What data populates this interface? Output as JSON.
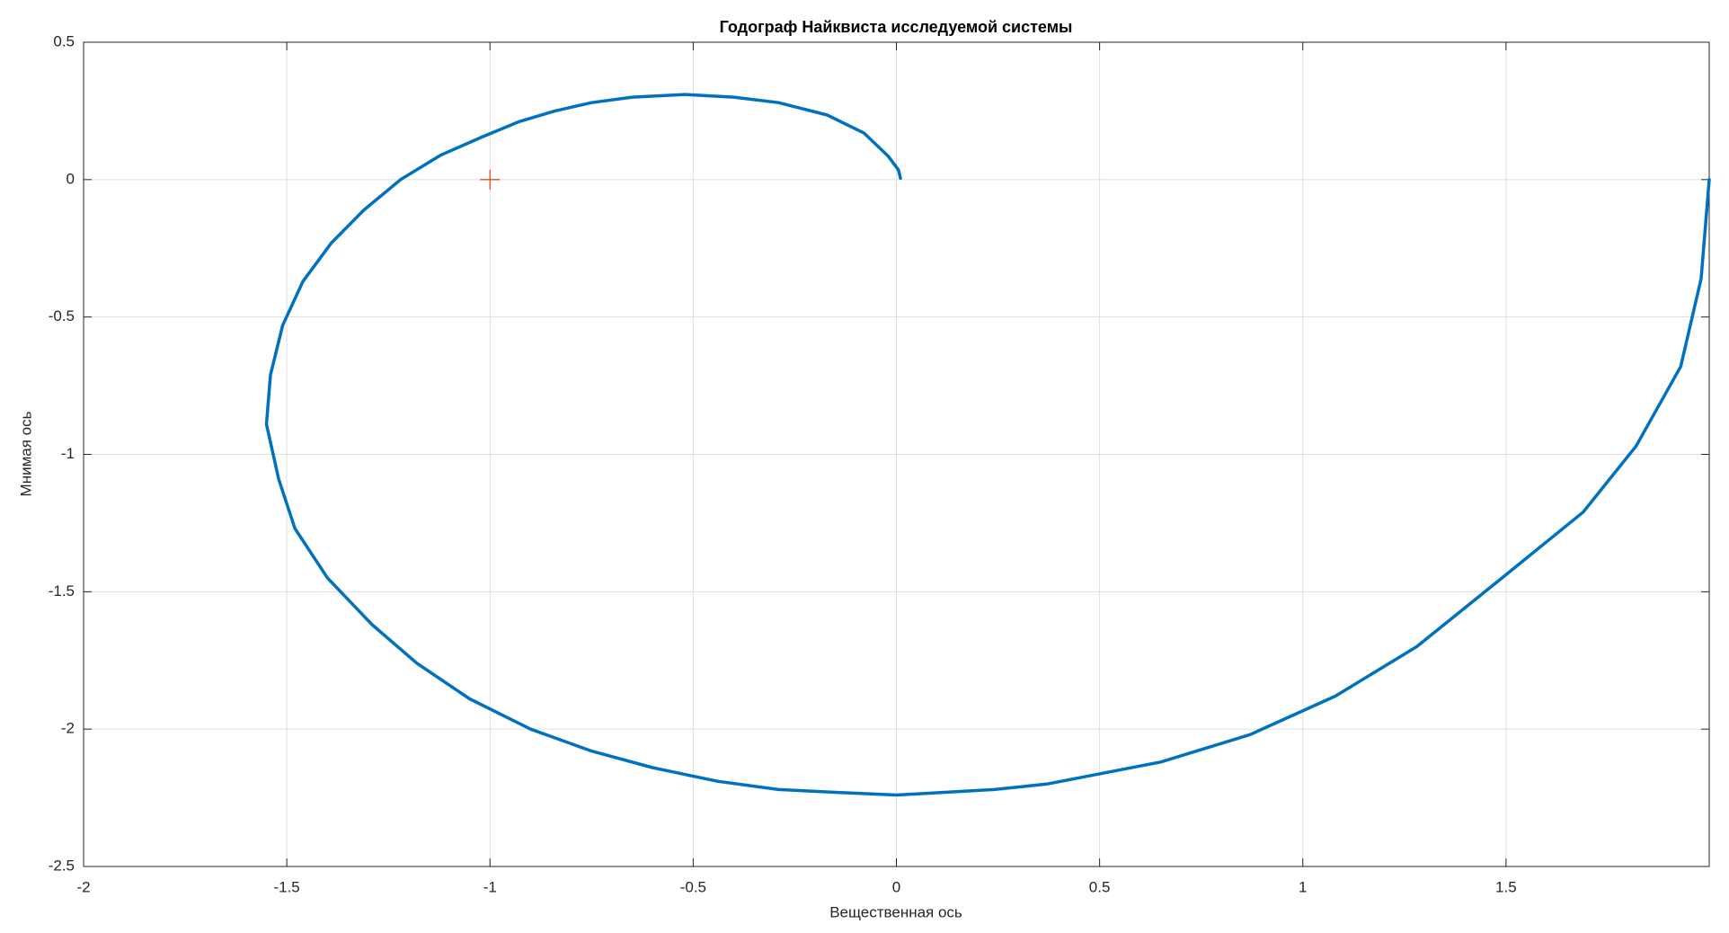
{
  "chart_data": {
    "type": "line",
    "title": "Годограф Найквиста исследуемой системы",
    "x_label": "Вещественная ось",
    "y_label": "Мнимая ось",
    "xlim": [
      -2,
      2
    ],
    "ylim": [
      -2.5,
      0.5
    ],
    "xticks": [
      -2,
      -1.5,
      -1,
      -0.5,
      0,
      0.5,
      1,
      1.5
    ],
    "yticks": [
      -2.5,
      -2,
      -1.5,
      -1,
      -0.5,
      0,
      0.5
    ],
    "grid": true,
    "series": [
      {
        "color": "#0072bd",
        "marker": "none",
        "x": [
          2.0,
          1.98,
          1.93,
          1.82,
          1.69,
          1.49,
          1.28,
          1.08,
          0.87,
          0.65,
          0.37,
          0.24,
          0.0,
          -0.15,
          -0.29,
          -0.44,
          -0.6,
          -0.75,
          -0.9,
          -1.05,
          -1.18,
          -1.29,
          -1.4,
          -1.48,
          -1.52,
          -1.55,
          -1.54,
          -1.51,
          -1.46,
          -1.39,
          -1.31,
          -1.22,
          -1.12,
          -1.02,
          -0.93,
          -0.84,
          -0.75,
          -0.65,
          -0.52,
          -0.4,
          -0.29,
          -0.17,
          -0.08,
          -0.02,
          0.005,
          0.01
        ],
        "values": [
          0.0,
          -0.36,
          -0.68,
          -0.97,
          -1.21,
          -1.45,
          -1.7,
          -1.88,
          -2.02,
          -2.12,
          -2.2,
          -2.22,
          -2.24,
          -2.23,
          -2.22,
          -2.19,
          -2.14,
          -2.08,
          -2.0,
          -1.89,
          -1.76,
          -1.62,
          -1.45,
          -1.27,
          -1.09,
          -0.89,
          -0.71,
          -0.53,
          -0.37,
          -0.23,
          -0.11,
          0.0,
          0.09,
          0.155,
          0.21,
          0.25,
          0.28,
          0.3,
          0.31,
          0.3,
          0.28,
          0.235,
          0.17,
          0.085,
          0.035,
          0.005
        ]
      },
      {
        "color": "#d95319",
        "marker": "+",
        "x": [
          -1
        ],
        "values": [
          0
        ]
      }
    ]
  }
}
